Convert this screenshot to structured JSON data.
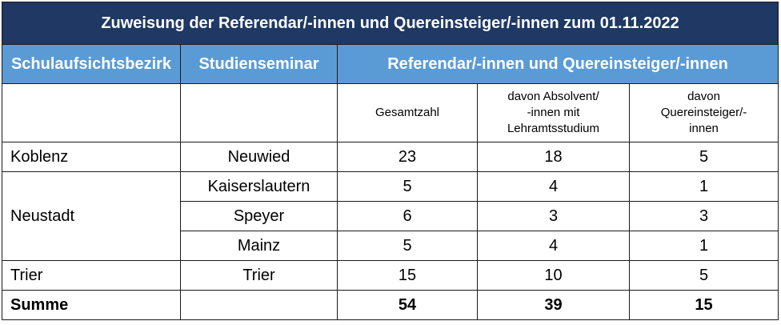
{
  "title": "Zuweisung der Referendar/-innen und Quereinsteiger/-innen zum 01.11.2022",
  "headers": {
    "district": "Schulaufsichtsbezirk",
    "seminar": "Studienseminar",
    "group": "Referendar/-innen und Quereinsteiger/-innen"
  },
  "subheaders": {
    "total": "Gesamtzahl",
    "graduates": "davon Absolvent/\n-innen mit\nLehramtsstudium",
    "career_changers": "davon\nQuereinsteiger/-\ninnen"
  },
  "rows": [
    {
      "district": "Koblenz",
      "seminar": "Neuwied",
      "total": "23",
      "graduates": "18",
      "career_changers": "5"
    },
    {
      "district": "Neustadt",
      "seminar": "Kaiserslautern",
      "total": "5",
      "graduates": "4",
      "career_changers": "1"
    },
    {
      "seminar": "Speyer",
      "total": "6",
      "graduates": "3",
      "career_changers": "3"
    },
    {
      "seminar": "Mainz",
      "total": "5",
      "graduates": "4",
      "career_changers": "1"
    },
    {
      "district": "Trier",
      "seminar": "Trier",
      "total": "15",
      "graduates": "10",
      "career_changers": "5"
    }
  ],
  "sum": {
    "label": "Summe",
    "total": "54",
    "graduates": "39",
    "career_changers": "15"
  }
}
